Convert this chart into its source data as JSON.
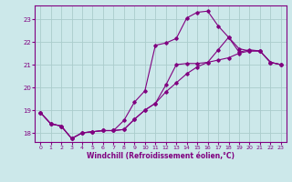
{
  "xlabel": "Windchill (Refroidissement éolien,°C)",
  "bg_color": "#cce8ea",
  "line_color": "#800080",
  "xlim": [
    -0.5,
    23.5
  ],
  "ylim": [
    17.6,
    23.6
  ],
  "yticks": [
    18,
    19,
    20,
    21,
    22,
    23
  ],
  "xticks": [
    0,
    1,
    2,
    3,
    4,
    5,
    6,
    7,
    8,
    9,
    10,
    11,
    12,
    13,
    14,
    15,
    16,
    17,
    18,
    19,
    20,
    21,
    22,
    23
  ],
  "grid_color": "#aacccc",
  "line1_x": [
    0,
    1,
    2,
    3,
    4,
    5,
    6,
    7,
    8,
    9,
    10,
    11,
    12,
    13,
    14,
    15,
    16,
    17,
    18,
    19,
    20,
    21,
    22,
    23
  ],
  "line1_y": [
    18.9,
    18.4,
    18.3,
    17.75,
    18.0,
    18.05,
    18.1,
    18.1,
    18.15,
    18.6,
    19.0,
    19.3,
    19.8,
    20.2,
    20.6,
    20.9,
    21.1,
    21.2,
    21.3,
    21.5,
    21.6,
    21.6,
    21.1,
    21.0
  ],
  "line2_x": [
    0,
    1,
    2,
    3,
    4,
    5,
    6,
    7,
    8,
    9,
    10,
    11,
    12,
    13,
    14,
    15,
    16,
    17,
    18,
    19,
    20,
    21,
    22,
    23
  ],
  "line2_y": [
    18.9,
    18.4,
    18.3,
    17.75,
    18.0,
    18.05,
    18.1,
    18.1,
    18.55,
    19.35,
    19.85,
    21.85,
    21.95,
    22.15,
    23.05,
    23.3,
    23.35,
    22.7,
    22.2,
    21.7,
    21.6,
    21.6,
    21.1,
    21.0
  ],
  "line3_x": [
    0,
    1,
    2,
    3,
    4,
    5,
    6,
    7,
    8,
    9,
    10,
    11,
    12,
    13,
    14,
    15,
    16,
    17,
    18,
    19,
    20,
    21,
    22,
    23
  ],
  "line3_y": [
    18.9,
    18.4,
    18.3,
    17.75,
    18.0,
    18.05,
    18.1,
    18.1,
    18.15,
    18.6,
    19.0,
    19.3,
    20.1,
    21.0,
    21.05,
    21.05,
    21.1,
    21.65,
    22.2,
    21.55,
    21.65,
    21.6,
    21.1,
    21.0
  ]
}
